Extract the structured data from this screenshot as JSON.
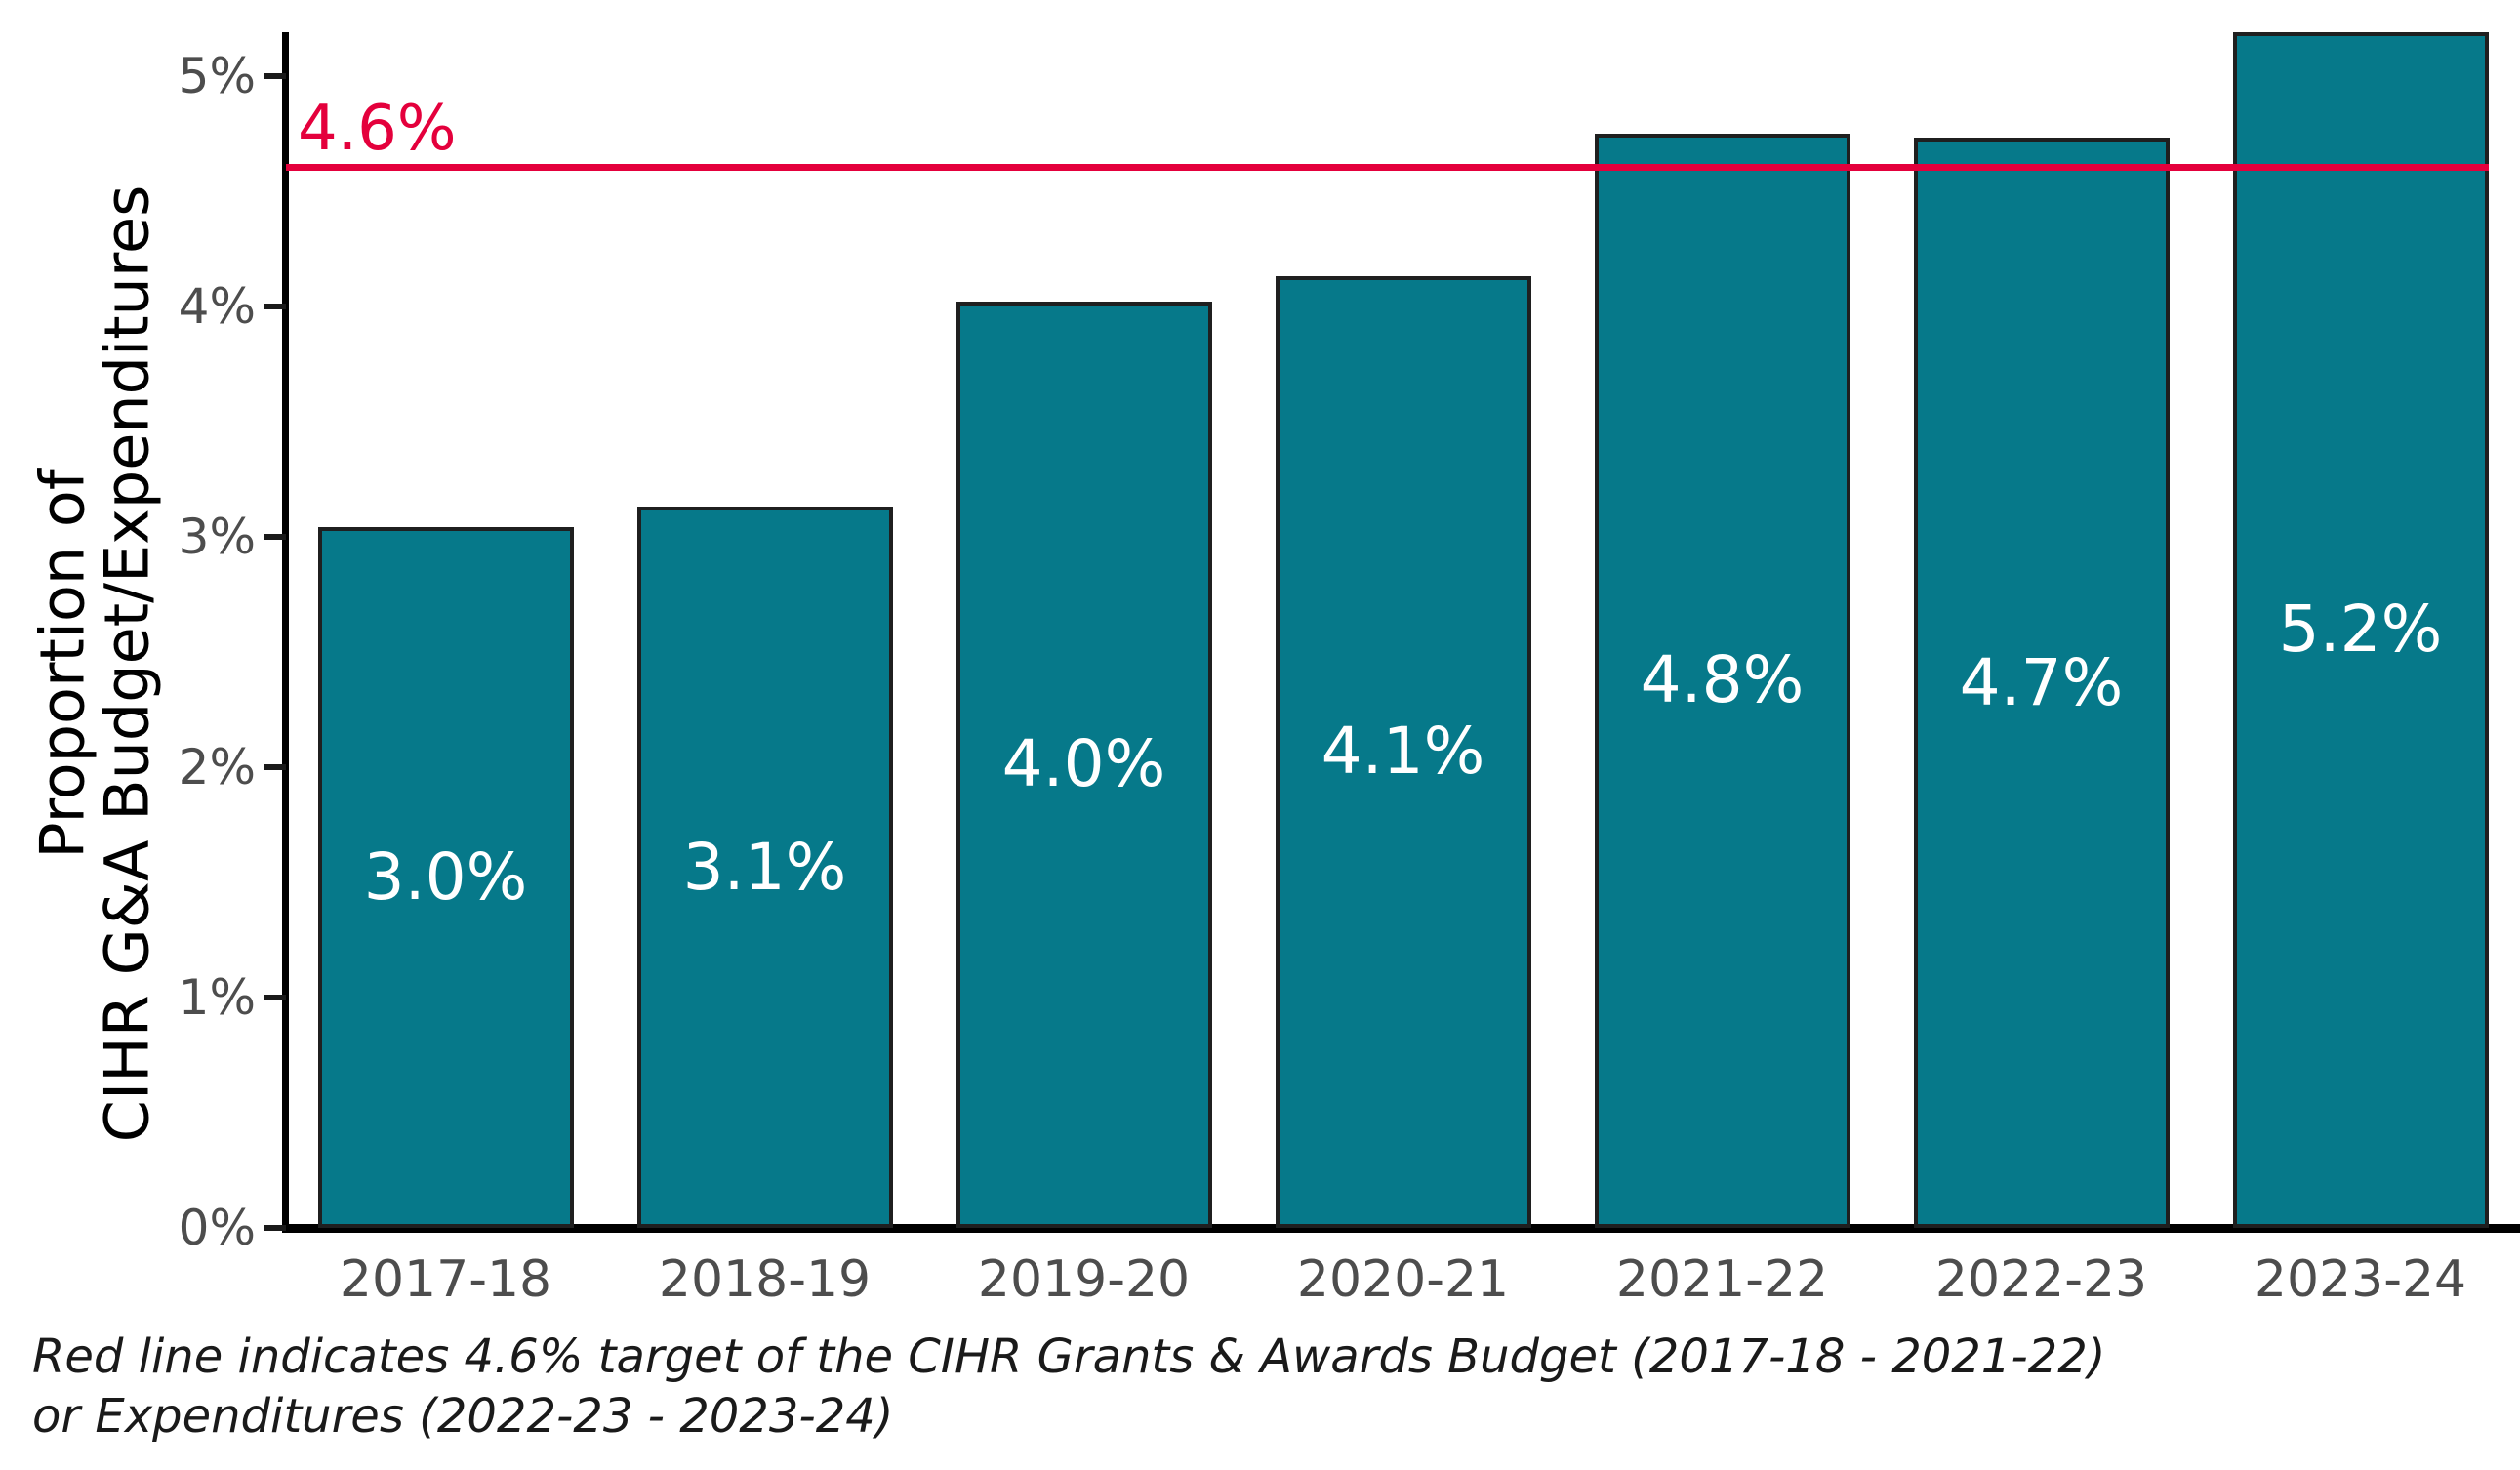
{
  "chart_data": {
    "type": "bar",
    "title": "",
    "ylabel_line1": "Proportion of",
    "ylabel_line2": "CIHR G&A Budget/Expenditures",
    "xlabel": "",
    "categories": [
      "2017-18",
      "2018-19",
      "2019-20",
      "2020-21",
      "2021-22",
      "2022-23",
      "2023-24"
    ],
    "values": [
      3.0,
      3.1,
      4.0,
      4.1,
      4.8,
      4.7,
      5.2
    ],
    "bar_labels": [
      "3.0%",
      "3.1%",
      "4.0%",
      "4.1%",
      "4.8%",
      "4.7%",
      "5.2%"
    ],
    "bar_heights_pct": [
      3.04,
      3.13,
      4.02,
      4.13,
      4.75,
      4.73,
      5.19
    ],
    "ylim": [
      0,
      5.19
    ],
    "yticks": [
      {
        "value": 0,
        "label": "0%"
      },
      {
        "value": 1,
        "label": "1%"
      },
      {
        "value": 2,
        "label": "2%"
      },
      {
        "value": 3,
        "label": "3%"
      },
      {
        "value": 4,
        "label": "4%"
      },
      {
        "value": 5,
        "label": "5%"
      }
    ],
    "reference_line": {
      "value": 4.6,
      "label": "4.6%"
    },
    "grid": false,
    "legend": "none",
    "colors": {
      "bar_fill": "#06798a",
      "bar_edge": "#1f1f1f",
      "reference_red": "#e4003c",
      "tick_label_gray": "#4d4d4d",
      "axis_black": "#000000",
      "bar_label_text": "#ffffff"
    }
  },
  "caption": {
    "line1": "Red line indicates 4.6% target of the CIHR Grants & Awards Budget (2017-18 - 2021-22)",
    "line2": "or Expenditures (2022-23 - 2023-24)"
  }
}
